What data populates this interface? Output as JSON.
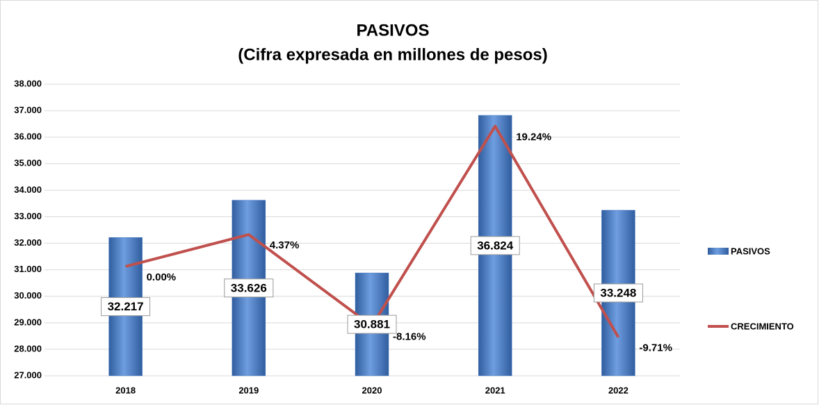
{
  "chart_data": {
    "type": "bar_line",
    "title": "PASIVOS",
    "subtitle": "(Cifra expresada en millones de pesos)",
    "categories": [
      "2018",
      "2019",
      "2020",
      "2021",
      "2022"
    ],
    "series": [
      {
        "name": "PASIVOS",
        "type": "bar",
        "color": "#4a7cc4",
        "values": [
          32217,
          33626,
          30881,
          36824,
          33248
        ],
        "value_labels": [
          "32.217",
          "33.626",
          "30.881",
          "36.824",
          "33.248"
        ]
      },
      {
        "name": "CRECIMIENTO",
        "type": "line",
        "axis": "y2",
        "color": "#c0504d",
        "values": [
          0.0,
          4.37,
          -8.16,
          19.24,
          -9.71
        ],
        "value_labels": [
          "0.00%",
          "4.37%",
          "-8.16%",
          "19.24%",
          "-9.71%"
        ]
      }
    ],
    "ylim": [
      27000,
      38000
    ],
    "yticks": [
      {
        "value": 27000,
        "label": "27.000"
      },
      {
        "value": 28000,
        "label": "28.000"
      },
      {
        "value": 29000,
        "label": "29.000"
      },
      {
        "value": 30000,
        "label": "30.000"
      },
      {
        "value": 31000,
        "label": "31.000"
      },
      {
        "value": 32000,
        "label": "32.000"
      },
      {
        "value": 33000,
        "label": "33.000"
      },
      {
        "value": 34000,
        "label": "34.000"
      },
      {
        "value": 35000,
        "label": "35.000"
      },
      {
        "value": 36000,
        "label": "36.000"
      },
      {
        "value": 37000,
        "label": "37.000"
      },
      {
        "value": 38000,
        "label": "38.000"
      }
    ],
    "y2lim": [
      -15,
      25
    ],
    "grid": true,
    "legend": "right"
  }
}
